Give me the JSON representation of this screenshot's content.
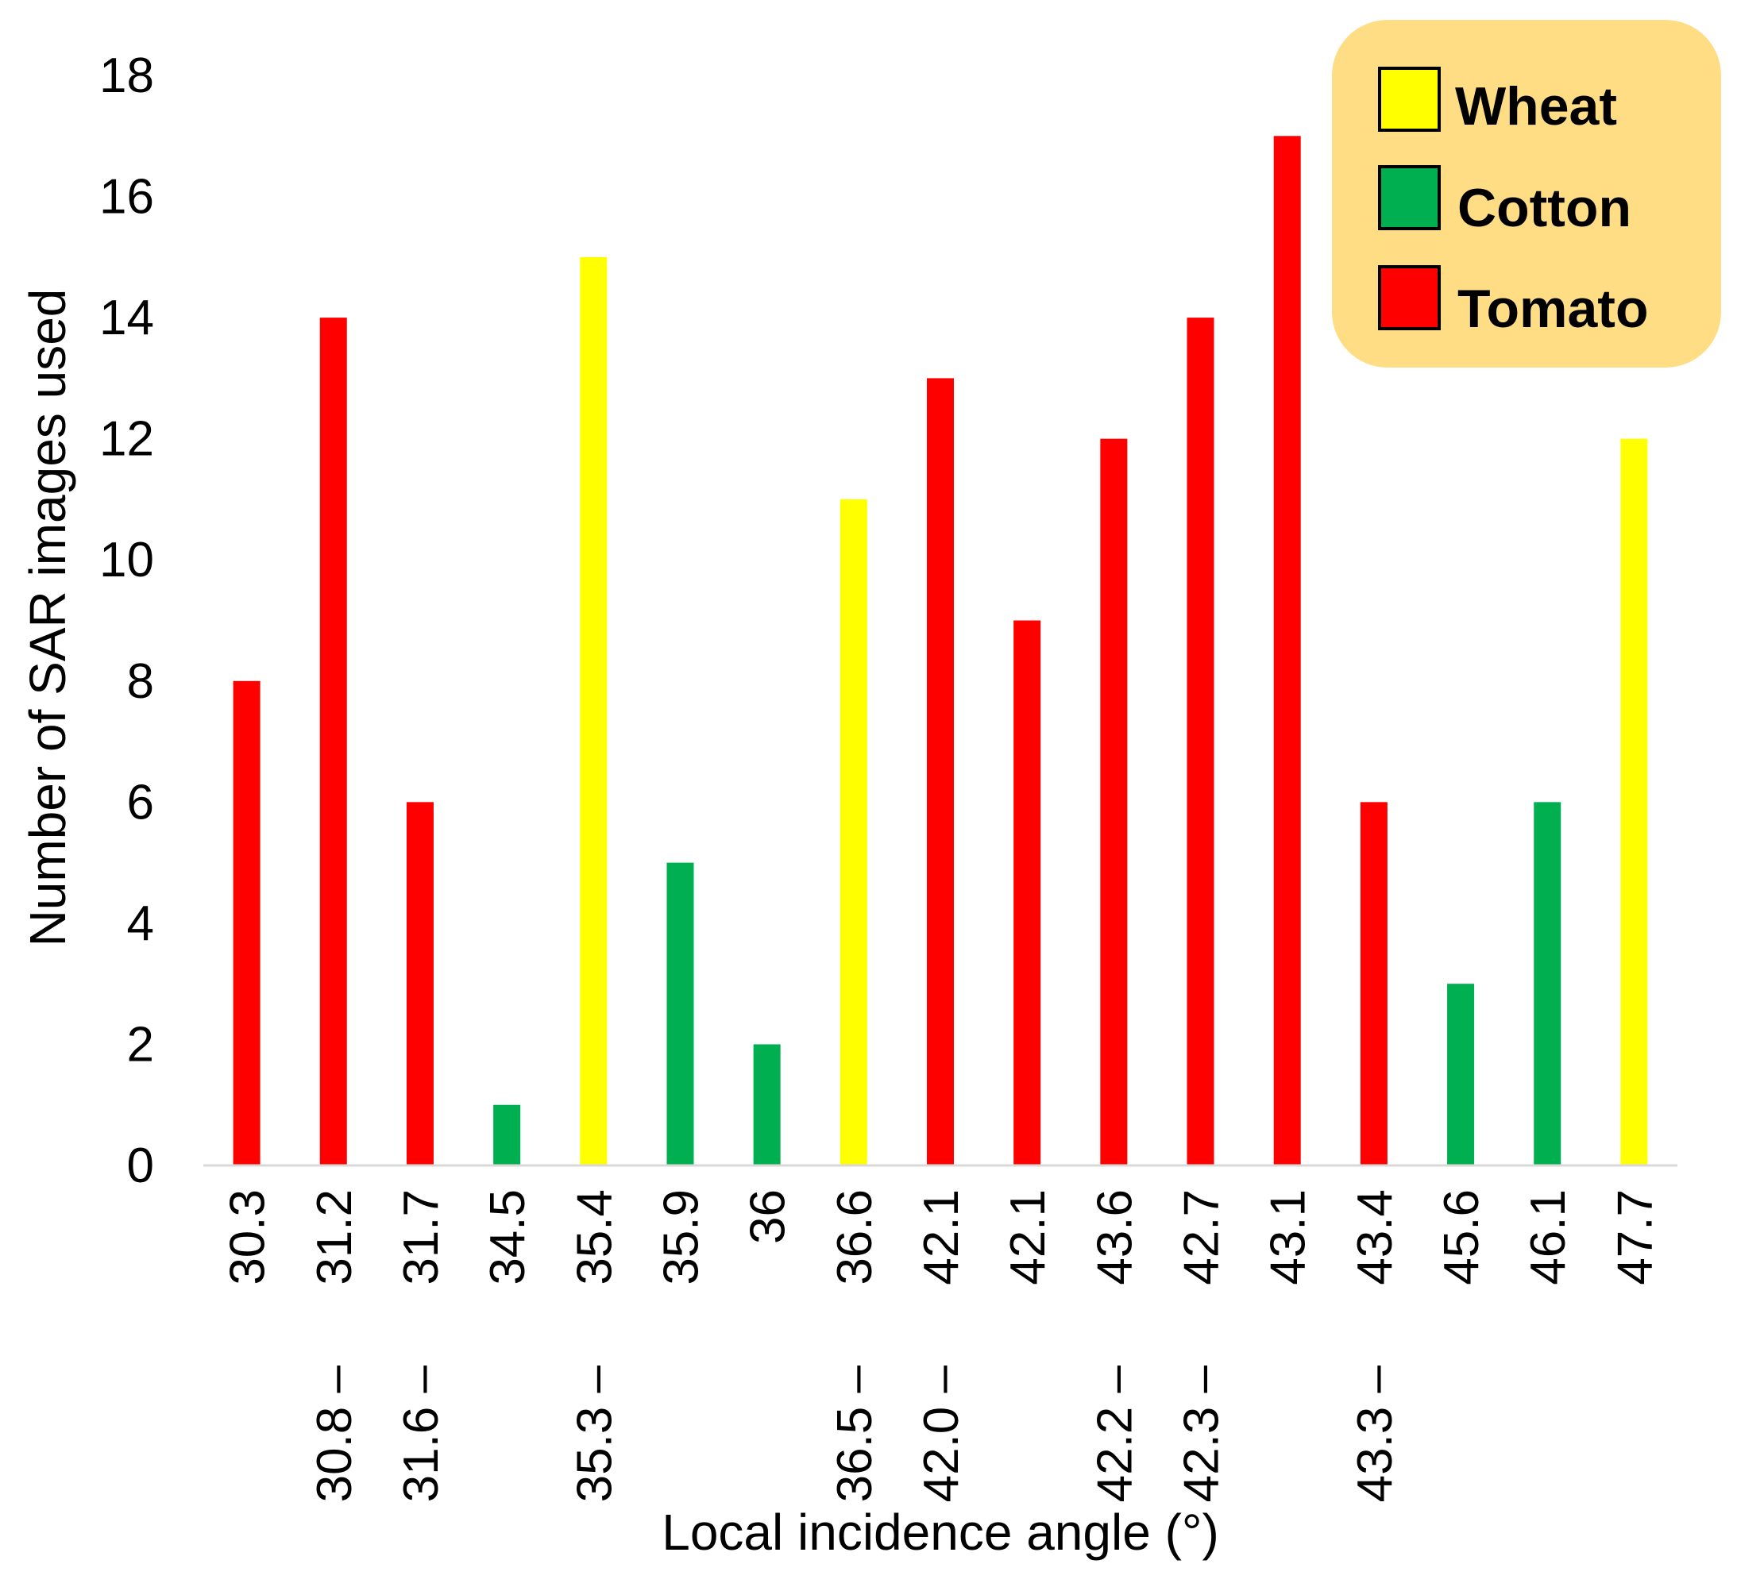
{
  "chart_data": {
    "type": "bar",
    "title": "",
    "xlabel": "Local incidence angle (°)",
    "ylabel": "Number of SAR images used",
    "ylim": [
      0,
      18
    ],
    "yticks": [
      0,
      2,
      4,
      6,
      8,
      10,
      12,
      14,
      16,
      18
    ],
    "grid": false,
    "legend_position": "top-right",
    "colors": {
      "Wheat": "#ffff00",
      "Cotton": "#00b050",
      "Tomato": "#ff0000",
      "legend_bg": "#ffdd85",
      "axis": "#d9d9d9"
    },
    "legend": [
      "Wheat",
      "Cotton",
      "Tomato"
    ],
    "categories": [
      [
        "30.3"
      ],
      [
        "30.8 –",
        "31.2"
      ],
      [
        "31.6 –",
        "31.7"
      ],
      [
        "34.5"
      ],
      [
        "35.3 –",
        "35.4"
      ],
      [
        "35.9"
      ],
      [
        "36"
      ],
      [
        "36.5 –",
        "36.6"
      ],
      [
        "42.0 –",
        "42.1"
      ],
      [
        "42.1"
      ],
      [
        "42.2 –",
        "43.6"
      ],
      [
        "42.3 –",
        "42.7"
      ],
      [
        "43.1"
      ],
      [
        "43.3 –",
        "43.4"
      ],
      [
        "45.6"
      ],
      [
        "46.1"
      ],
      [
        "47.7"
      ]
    ],
    "values": [
      8,
      14,
      6,
      1,
      15,
      5,
      2,
      11,
      13,
      9,
      12,
      14,
      17,
      6,
      3,
      6,
      12
    ],
    "crops": [
      "Tomato",
      "Tomato",
      "Tomato",
      "Cotton",
      "Wheat",
      "Cotton",
      "Cotton",
      "Wheat",
      "Tomato",
      "Tomato",
      "Tomato",
      "Tomato",
      "Tomato",
      "Tomato",
      "Cotton",
      "Cotton",
      "Wheat"
    ]
  }
}
